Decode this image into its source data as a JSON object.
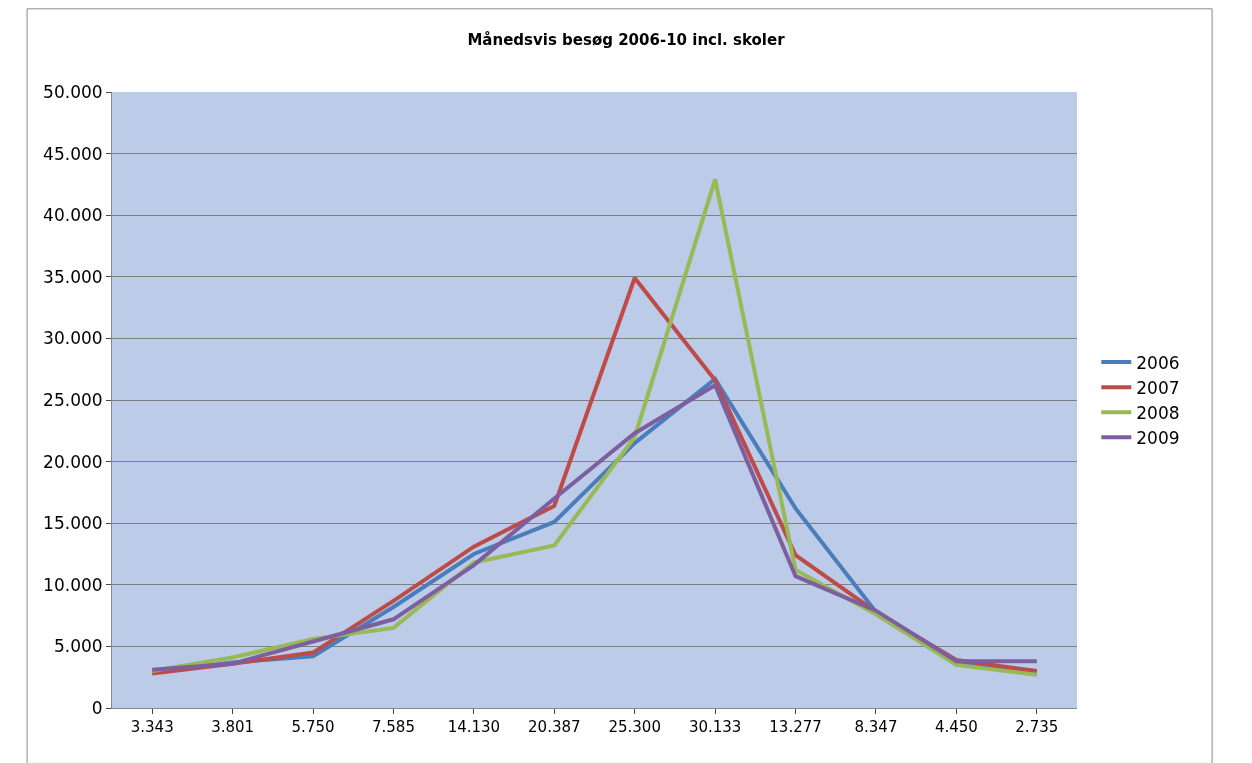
{
  "chart_data": {
    "type": "line",
    "title": "Månedsvis besøg 2006-10 incl. skoler",
    "categories": [
      "3.343",
      "3.801",
      "5.750",
      "7.585",
      "14.130",
      "20.387",
      "25.300",
      "30.133",
      "13.277",
      "8.347",
      "4.450",
      "2.735"
    ],
    "series": [
      {
        "name": "2006",
        "color": "#4a7ebb",
        "values": [
          2900,
          3700,
          4200,
          8200,
          12500,
          15100,
          21500,
          26700,
          16200,
          7800,
          3700,
          2900
        ]
      },
      {
        "name": "2007",
        "color": "#be4b48",
        "values": [
          2800,
          3600,
          4500,
          8700,
          13100,
          16400,
          34900,
          26600,
          12400,
          7800,
          3900,
          3000
        ]
      },
      {
        "name": "2008",
        "color": "#98b954",
        "values": [
          3000,
          4100,
          5600,
          6500,
          11800,
          13200,
          22000,
          42900,
          11200,
          7600,
          3500,
          2700
        ]
      },
      {
        "name": "2009",
        "color": "#7d5fa0",
        "values": [
          3100,
          3600,
          5400,
          7200,
          11600,
          17000,
          22300,
          26200,
          10700,
          7900,
          3800,
          3800
        ]
      }
    ],
    "ylim": [
      0,
      50000
    ],
    "yticks": [
      0,
      {
        "value": 5000,
        "label": "5.000"
      },
      {
        "value": 10000,
        "label": "10.000"
      },
      {
        "value": 15000,
        "label": "15.000"
      },
      {
        "value": 20000,
        "label": "20.000"
      },
      {
        "value": 25000,
        "label": "25.000"
      },
      {
        "value": 30000,
        "label": "30.000"
      },
      {
        "value": 35000,
        "label": "35.000"
      },
      {
        "value": 40000,
        "label": "40.000"
      },
      {
        "value": 45000,
        "label": "45.000"
      },
      {
        "value": 50000,
        "label": "50.000"
      }
    ],
    "grid": "y",
    "legend": "right",
    "marker": "none",
    "line_style": "solid"
  }
}
